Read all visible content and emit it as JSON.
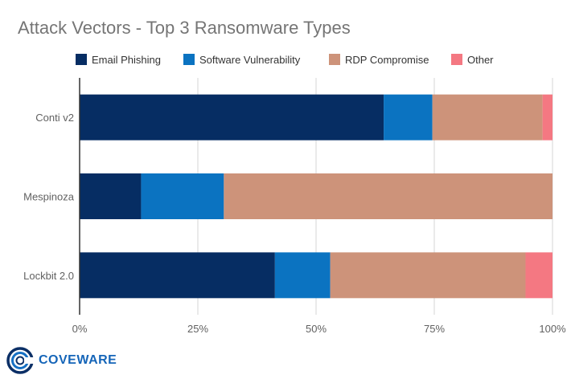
{
  "chart_data": {
    "type": "bar",
    "orientation": "horizontal",
    "stacked": true,
    "title": "Attack Vectors - Top 3 Ransomware Types",
    "categories": [
      "Conti v2",
      "Mespinoza",
      "Lockbit 2.0"
    ],
    "series": [
      {
        "name": "Email Phishing",
        "color": "#062d63",
        "values": [
          64.3,
          13.0,
          41.3
        ]
      },
      {
        "name": "Software Vulnerability",
        "color": "#0b73c1",
        "values": [
          10.3,
          17.5,
          11.7
        ]
      },
      {
        "name": "RDP Compromise",
        "color": "#cd937a",
        "values": [
          23.3,
          69.5,
          41.3
        ]
      },
      {
        "name": "Other",
        "color": "#f47882",
        "values": [
          2.1,
          0.0,
          5.7
        ]
      }
    ],
    "xlim": [
      0,
      100
    ],
    "xticks": [
      "0%",
      "25%",
      "50%",
      "75%",
      "100%"
    ],
    "grid": true,
    "legend_position": "top"
  },
  "logo": {
    "text": "COVEWARE",
    "icon": "coveware-ring-icon"
  }
}
